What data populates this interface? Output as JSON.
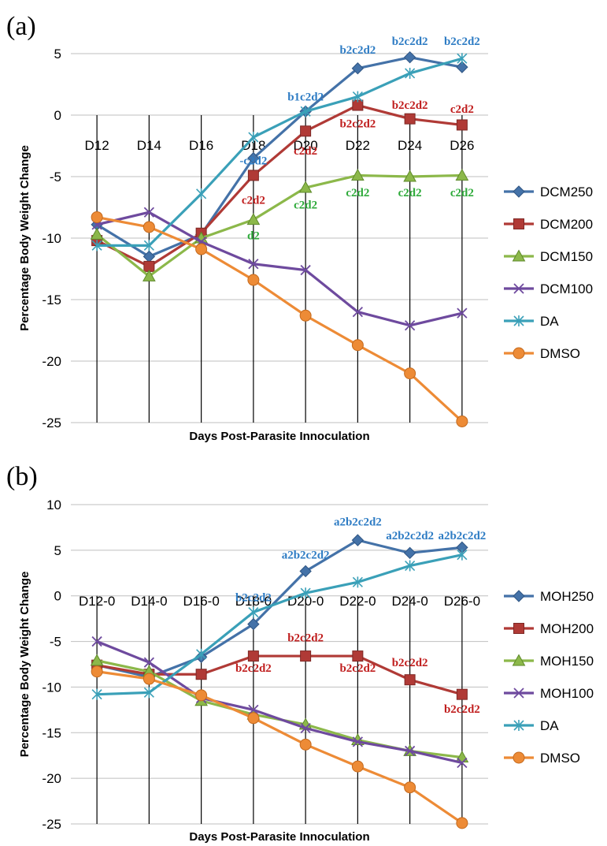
{
  "chart_data": [
    {
      "panel": "(a)",
      "type": "line",
      "categories": [
        "D12",
        "D14",
        "D16",
        "D18",
        "D20",
        "D22",
        "D24",
        "D26"
      ],
      "category_labels": [
        "D12",
        "D14",
        "D16",
        "D18",
        "D20",
        "D22",
        "D24",
        "D26"
      ],
      "xlabel": "Days Post-Parasite  Innoculation",
      "ylabel": "Percentage Body Weight Change",
      "ylim": [
        -25,
        5
      ],
      "yticks": [
        5,
        0,
        -5,
        -10,
        -15,
        -20,
        -25
      ],
      "grid": true,
      "legend_position": "right",
      "series": [
        {
          "name": "DCM250",
          "color": "#4472A8",
          "marker": "diamond",
          "values": [
            -8.9,
            -11.5,
            -9.7,
            -3.5,
            0.3,
            3.8,
            4.7,
            3.9
          ]
        },
        {
          "name": "DCM200",
          "color": "#B03A36",
          "marker": "square",
          "values": [
            -10.2,
            -12.3,
            -9.6,
            -4.9,
            -1.3,
            0.8,
            -0.3,
            -0.8
          ]
        },
        {
          "name": "DCM150",
          "color": "#8CB84A",
          "marker": "triangle",
          "values": [
            -9.7,
            -13.1,
            -10.0,
            -8.5,
            -5.9,
            -4.9,
            -5.0,
            -4.9
          ]
        },
        {
          "name": "DCM100",
          "color": "#6E4A9E",
          "marker": "x",
          "values": [
            -8.9,
            -7.9,
            -10.3,
            -12.1,
            -12.6,
            -16.0,
            -17.1,
            -16.1
          ]
        },
        {
          "name": "DA",
          "color": "#3AA0B8",
          "marker": "star",
          "values": [
            -10.6,
            -10.6,
            -6.4,
            -1.8,
            0.3,
            1.5,
            3.4,
            4.6
          ]
        },
        {
          "name": "DMSO",
          "color": "#ED8B36",
          "marker": "circle",
          "values": [
            -8.3,
            -9.1,
            -10.9,
            -13.4,
            -16.3,
            -18.7,
            -21.0,
            -24.9
          ]
        }
      ],
      "annotations": [
        {
          "text": "b2c2d2",
          "x": "D22",
          "y": 5.0,
          "color": "#2E7CC4"
        },
        {
          "text": "b2c2d2",
          "x": "D24",
          "y": 5.7,
          "color": "#2E7CC4"
        },
        {
          "text": "b2c2d2",
          "x": "D26",
          "y": 5.7,
          "color": "#2E7CC4"
        },
        {
          "text": "b1c2d2",
          "x": "D20",
          "y": 1.2,
          "color": "#2E7CC4"
        },
        {
          "text": "b2c2d2",
          "x": "D24",
          "y": 0.5,
          "color": "#C01E1E"
        },
        {
          "text": "c2d2",
          "x": "D26",
          "y": 0.2,
          "color": "#C01E1E"
        },
        {
          "text": "b2c2d2",
          "x": "D22",
          "y": -1.0,
          "color": "#C01E1E"
        },
        {
          "text": "c2d2",
          "x": "D20",
          "y": -3.2,
          "color": "#C01E1E"
        },
        {
          "text": "-c2d2",
          "x": "D18",
          "y": -4.0,
          "color": "#2E7CC4"
        },
        {
          "text": "c2d2",
          "x": "D18",
          "y": -7.2,
          "color": "#C01E1E"
        },
        {
          "text": "c2d2",
          "x": "D22",
          "y": -6.6,
          "color": "#2EAA3A"
        },
        {
          "text": "c2d2",
          "x": "D24",
          "y": -6.6,
          "color": "#2EAA3A"
        },
        {
          "text": "c2d2",
          "x": "D26",
          "y": -6.6,
          "color": "#2EAA3A"
        },
        {
          "text": "c2d2",
          "x": "D20",
          "y": -7.6,
          "color": "#2EAA3A"
        },
        {
          "text": "d2",
          "x": "D18",
          "y": -10.1,
          "color": "#2EAA3A"
        }
      ]
    },
    {
      "panel": "(b)",
      "type": "line",
      "categories": [
        "D12",
        "D14",
        "D16",
        "D18",
        "D20",
        "D22",
        "D24",
        "D26"
      ],
      "category_labels": [
        "D12-0",
        "D14-0",
        "D16-0",
        "D18-0",
        "D20-0",
        "D22-0",
        "D24-0",
        "D26-0"
      ],
      "xlabel": "Days Post-Parasite  Innoculation",
      "ylabel": "Percentage Body Weight Change",
      "ylim": [
        -25,
        10
      ],
      "yticks": [
        10,
        5,
        0,
        -5,
        -10,
        -15,
        -20,
        -25
      ],
      "grid": true,
      "legend_position": "right",
      "series": [
        {
          "name": "MOH250",
          "color": "#4472A8",
          "marker": "diamond",
          "values": [
            -7.6,
            -8.9,
            -6.7,
            -3.1,
            2.7,
            6.1,
            4.7,
            5.3
          ]
        },
        {
          "name": "MOH200",
          "color": "#B03A36",
          "marker": "square",
          "values": [
            -7.6,
            -8.6,
            -8.6,
            -6.6,
            -6.6,
            -6.6,
            -9.2,
            -10.8
          ]
        },
        {
          "name": "MOH150",
          "color": "#8CB84A",
          "marker": "triangle",
          "values": [
            -7.1,
            -8.3,
            -11.5,
            -13.0,
            -14.1,
            -15.8,
            -17.0,
            -17.7
          ]
        },
        {
          "name": "MOH100",
          "color": "#6E4A9E",
          "marker": "x",
          "values": [
            -5.0,
            -7.3,
            -11.2,
            -12.5,
            -14.5,
            -16.0,
            -17.0,
            -18.3
          ]
        },
        {
          "name": "DA",
          "color": "#3AA0B8",
          "marker": "star",
          "values": [
            -10.8,
            -10.6,
            -6.4,
            -1.8,
            0.3,
            1.5,
            3.3,
            4.5
          ]
        },
        {
          "name": "DMSO",
          "color": "#ED8B36",
          "marker": "circle",
          "values": [
            -8.3,
            -9.1,
            -10.9,
            -13.4,
            -16.3,
            -18.7,
            -21.0,
            -24.9
          ]
        }
      ],
      "annotations": [
        {
          "text": "a2b2c2d2",
          "x": "D22",
          "y": 7.7,
          "color": "#2E7CC4"
        },
        {
          "text": "a2b2c2d2",
          "x": "D24",
          "y": 6.2,
          "color": "#2E7CC4"
        },
        {
          "text": "a2b2c2d2",
          "x": "D26",
          "y": 6.2,
          "color": "#2E7CC4"
        },
        {
          "text": "a2b2c2d2",
          "x": "D20",
          "y": 4.1,
          "color": "#2E7CC4"
        },
        {
          "text": "b2c2d2",
          "x": "D18",
          "y": -0.6,
          "color": "#2E7CC4"
        },
        {
          "text": "b2c2d2",
          "x": "D20",
          "y": -5.0,
          "color": "#C01E1E"
        },
        {
          "text": "b2c2d2",
          "x": "D18",
          "y": -8.3,
          "color": "#C01E1E"
        },
        {
          "text": "b2c2d2",
          "x": "D22",
          "y": -8.3,
          "color": "#C01E1E"
        },
        {
          "text": "b2c2d2",
          "x": "D24",
          "y": -7.7,
          "color": "#C01E1E"
        },
        {
          "text": "b2c2d2",
          "x": "D26",
          "y": -12.8,
          "color": "#C01E1E"
        }
      ]
    }
  ]
}
